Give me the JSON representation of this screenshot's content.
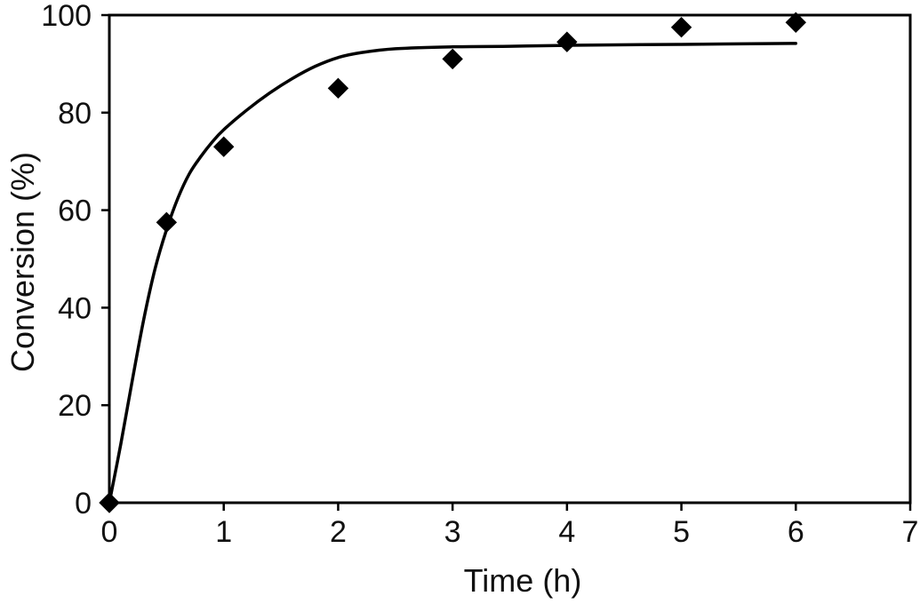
{
  "chart_data": {
    "type": "scatter",
    "xlabel": "Time (h)",
    "ylabel": "Conversion (%)",
    "xlim": [
      0,
      7
    ],
    "ylim": [
      0,
      100
    ],
    "x_ticks": [
      "0",
      "1",
      "2",
      "3",
      "4",
      "5",
      "6",
      "7"
    ],
    "y_ticks": [
      "0",
      "20",
      "40",
      "60",
      "80",
      "100"
    ],
    "grid": false,
    "legend": "none",
    "colors": {
      "ink": "#000000",
      "background": "#ffffff"
    },
    "series": [
      {
        "marker": "diamond",
        "x": [
          0,
          0.5,
          1,
          2,
          3,
          4,
          5,
          6
        ],
        "y": [
          0,
          57.5,
          73,
          85,
          91,
          94.5,
          97.5,
          98.5
        ]
      }
    ],
    "fit_curve": {
      "line_style": "solid",
      "x": [
        0,
        0.1,
        0.2,
        0.3,
        0.4,
        0.5,
        0.6,
        0.7,
        0.8,
        0.9,
        1.0,
        1.2,
        1.4,
        1.6,
        1.8,
        2.0,
        2.2,
        2.5,
        3.0,
        3.5,
        4.0,
        5.0,
        6.0
      ],
      "y": [
        0,
        12,
        25,
        37.5,
        48,
        56,
        62.5,
        67.5,
        71,
        74,
        76.5,
        80.5,
        84,
        87,
        89.5,
        91.3,
        92.3,
        93.1,
        93.5,
        93.6,
        93.8,
        94,
        94.2
      ]
    }
  }
}
